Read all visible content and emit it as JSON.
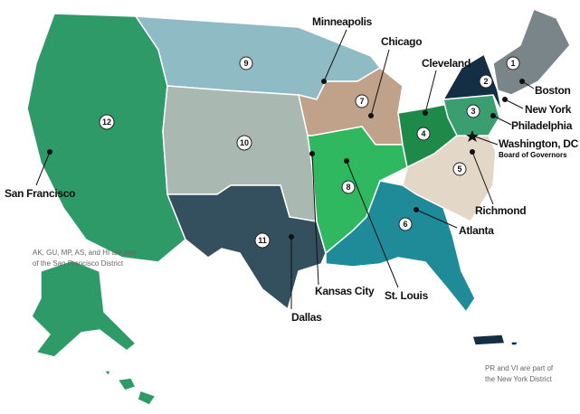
{
  "districts": [
    {
      "number": 1,
      "city": "Boston"
    },
    {
      "number": 2,
      "city": "New York"
    },
    {
      "number": 3,
      "city": "Philadelphia"
    },
    {
      "number": 4,
      "city": "Cleveland"
    },
    {
      "number": 5,
      "city": "Richmond"
    },
    {
      "number": 6,
      "city": "Atlanta"
    },
    {
      "number": 7,
      "city": "Chicago"
    },
    {
      "number": 8,
      "city": "St. Louis"
    },
    {
      "number": 9,
      "city": "Minneapolis"
    },
    {
      "number": 10,
      "city": "Kansas City"
    },
    {
      "number": 11,
      "city": "Dallas"
    },
    {
      "number": 12,
      "city": "San Francisco"
    }
  ],
  "washington": {
    "name": "Washington, DC",
    "subtitle": "Board of Governors"
  },
  "notes": [
    "AK, GU, MP, AS, and HI are part of the San Francisco District",
    "PR and VI are part of the New York District"
  ]
}
